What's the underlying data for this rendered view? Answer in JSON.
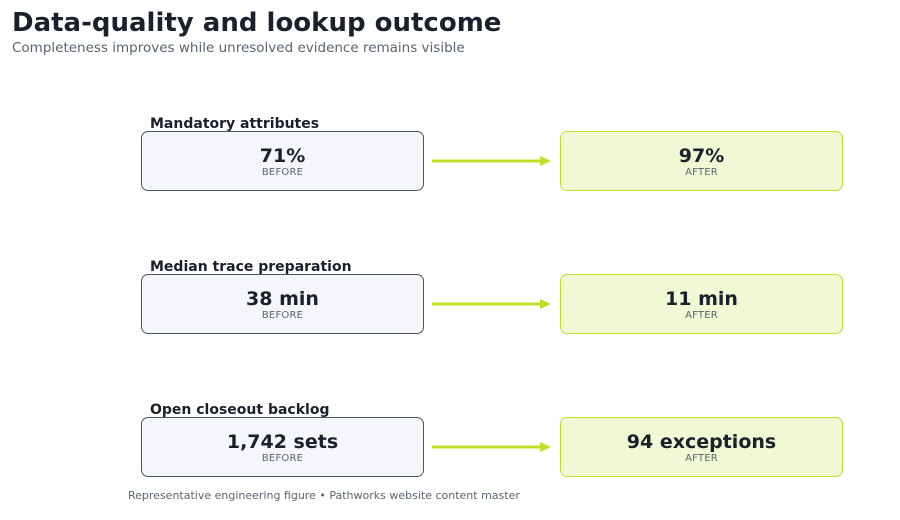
{
  "title": "Data-quality and lookup outcome",
  "subtitle": "Completeness improves while unresolved evidence remains visible",
  "rows": [
    {
      "label": "Mandatory attributes",
      "before": {
        "value": "71%",
        "tag": "BEFORE"
      },
      "after": {
        "value": "97%",
        "tag": "AFTER"
      }
    },
    {
      "label": "Median trace preparation",
      "before": {
        "value": "38 min",
        "tag": "BEFORE"
      },
      "after": {
        "value": "11 min",
        "tag": "AFTER"
      }
    },
    {
      "label": "Open closeout backlog",
      "before": {
        "value": "1,742 sets",
        "tag": "BEFORE"
      },
      "after": {
        "value": "94 exceptions",
        "tag": "AFTER"
      }
    }
  ],
  "footer": "Representative engineering figure • Pathworks website content master",
  "colors": {
    "before_fill": "#f4f6f9",
    "before_border": "#4a5563",
    "after_fill": "#f1f8d4",
    "after_border": "#c4dd2a",
    "arrow": "#c4dd2a"
  }
}
